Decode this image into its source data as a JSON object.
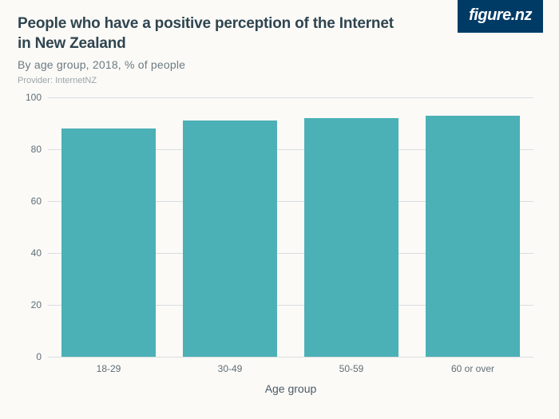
{
  "logo": {
    "text": "figure.nz"
  },
  "header": {
    "title_line1": "People who have a positive perception of the Internet",
    "title_line2": "in New Zealand",
    "subtitle": "By age group, 2018, % of people",
    "provider": "Provider: InternetNZ"
  },
  "chart": {
    "type": "bar",
    "categories": [
      "18-29",
      "30-49",
      "50-59",
      "60 or over"
    ],
    "values": [
      88,
      91,
      92,
      93
    ],
    "bar_color": "#4cb0b7",
    "ylim": [
      0,
      100
    ],
    "yticks": [
      0,
      20,
      40,
      60,
      80,
      100
    ],
    "xlabel": "Age group",
    "background_color": "#fbfaf7",
    "grid_color": "#d9dedf",
    "axis_text_color": "#5f6e76",
    "bar_width": 0.78,
    "tick_fontsize": 12,
    "xlabel_fontsize": 14
  },
  "colors": {
    "logo_bg": "#003b66",
    "logo_text": "#ffffff",
    "title": "#2f4550",
    "subtitle": "#6b7a82",
    "provider": "#9aa5ab"
  }
}
